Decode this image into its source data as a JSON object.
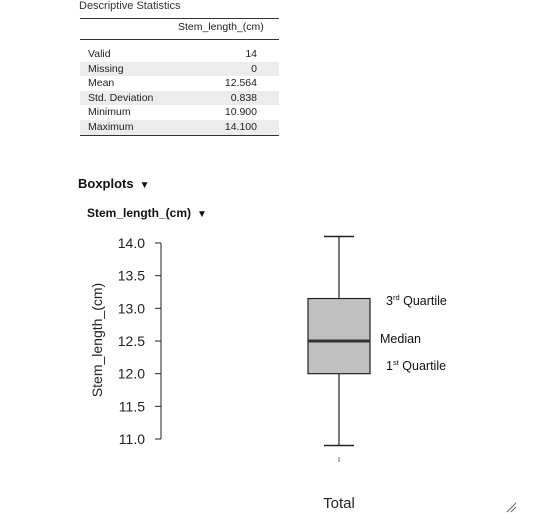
{
  "descriptives": {
    "title": "Descriptive Statistics",
    "column": "Stem_length_(cm)",
    "rows": [
      {
        "label": "Valid",
        "value": "14"
      },
      {
        "label": "Missing",
        "value": "0"
      },
      {
        "label": "Mean",
        "value": "12.564"
      },
      {
        "label": "Std. Deviation",
        "value": "0.838"
      },
      {
        "label": "Minimum",
        "value": "10.900"
      },
      {
        "label": "Maximum",
        "value": "14.100"
      }
    ]
  },
  "boxplots": {
    "heading": "Boxplots",
    "subheading": "Stem_length_(cm)",
    "toggle_icon": "triangle-down-icon"
  },
  "annotations": {
    "q3": {
      "num": "3",
      "sup": "rd",
      "text": "Quartile"
    },
    "median": "Median",
    "q1": {
      "num": "1",
      "sup": "st",
      "text": "Quartile"
    }
  },
  "chart_data": {
    "type": "box",
    "title": "",
    "xlabel": "Total",
    "ylabel": "Stem_length_(cm)",
    "ylim": [
      10.85,
      14.15
    ],
    "yticks": [
      "14.0",
      "13.5",
      "13.0",
      "12.5",
      "12.0",
      "11.5",
      "11.0"
    ],
    "ytick_values": [
      14.0,
      13.5,
      13.0,
      12.5,
      12.0,
      11.5,
      11.0
    ],
    "categories": [
      "Total"
    ],
    "box": {
      "min": 10.9,
      "q1": 12.0,
      "median": 12.5,
      "q3": 13.15,
      "max": 14.1
    },
    "box_fill": "#c0c0c0"
  }
}
